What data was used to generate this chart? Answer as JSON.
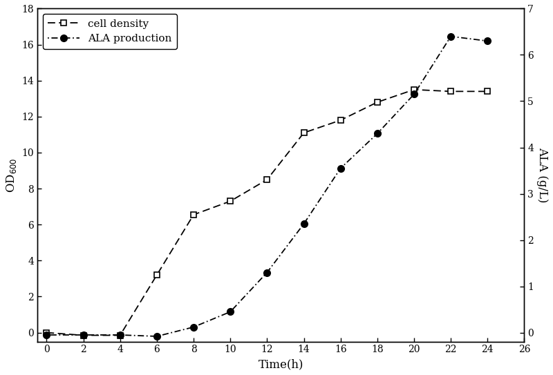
{
  "time": [
    0,
    2,
    4,
    6,
    8,
    10,
    12,
    14,
    16,
    18,
    20,
    22,
    24
  ],
  "cell_density": [
    0.0,
    -0.15,
    -0.15,
    3.2,
    6.55,
    7.3,
    8.5,
    11.1,
    11.8,
    12.8,
    13.5,
    13.4,
    13.4
  ],
  "ala": [
    -0.05,
    -0.05,
    -0.05,
    -0.08,
    0.12,
    0.45,
    1.3,
    2.35,
    3.55,
    4.3,
    5.15,
    6.4,
    6.3
  ],
  "od_ylim": [
    -0.5,
    18
  ],
  "od_yticks": [
    0,
    2,
    4,
    6,
    8,
    10,
    12,
    14,
    16,
    18
  ],
  "ala_ylim": [
    -0.194,
    7
  ],
  "ala_yticks": [
    0,
    1,
    2,
    3,
    4,
    5,
    6,
    7
  ],
  "xlim": [
    -0.5,
    26
  ],
  "xticks": [
    0,
    2,
    4,
    6,
    8,
    10,
    12,
    14,
    16,
    18,
    20,
    22,
    24,
    26
  ],
  "xlabel": "Time(h)",
  "ylabel_left": "OD$_{600}$",
  "ylabel_right": "ALA (g/L)",
  "legend_cell": "cell density",
  "legend_ala": "ALA production",
  "line_color": "#000000",
  "bg_color": "#ffffff",
  "cell_linestyle": "--",
  "ala_linestyle": "-.",
  "cell_dashes": [
    6,
    3
  ],
  "ala_dashes": [
    1,
    2,
    5,
    2
  ]
}
